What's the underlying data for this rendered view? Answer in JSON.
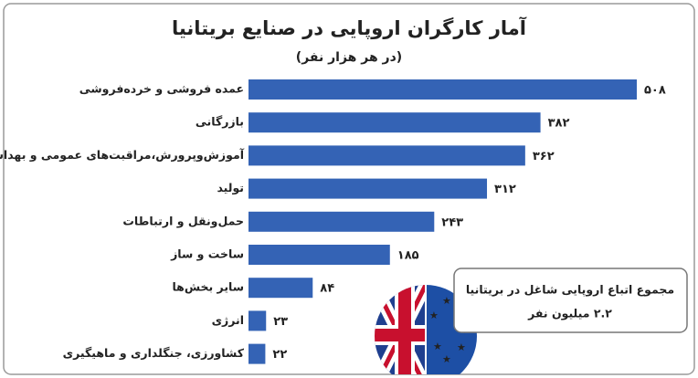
{
  "chart_data": {
    "type": "bar",
    "orientation": "horizontal",
    "title": "آمار کارگران اروپایی در صنایع بریتانیا",
    "subtitle": "(در هر هزار نفر)",
    "categories": [
      "عمده فروشی و خرده‌فروشی",
      "بازرگانی",
      "آموزش‌وپرورش،مراقبت‌های عمومی و بهداشت",
      "تولید",
      "حمل‌ونقل و ارتباطات",
      "ساخت و ساز",
      "سایر بخش‌ها",
      "انرژی",
      "کشاورزی، جنگلداری و ماهیگیری"
    ],
    "values": [
      508,
      382,
      362,
      312,
      243,
      185,
      84,
      23,
      22
    ],
    "value_labels": [
      "۵۰۸",
      "۳۸۲",
      "۳۶۲",
      "۳۱۲",
      "۲۴۳",
      "۱۸۵",
      "۸۴",
      "۲۳",
      "۲۲"
    ],
    "color": "#3463b5",
    "annotation": {
      "title": "مجموع اتباع اروپایی شاغل در بریتانیا",
      "text": "۲.۲ میلیون نفر"
    }
  }
}
